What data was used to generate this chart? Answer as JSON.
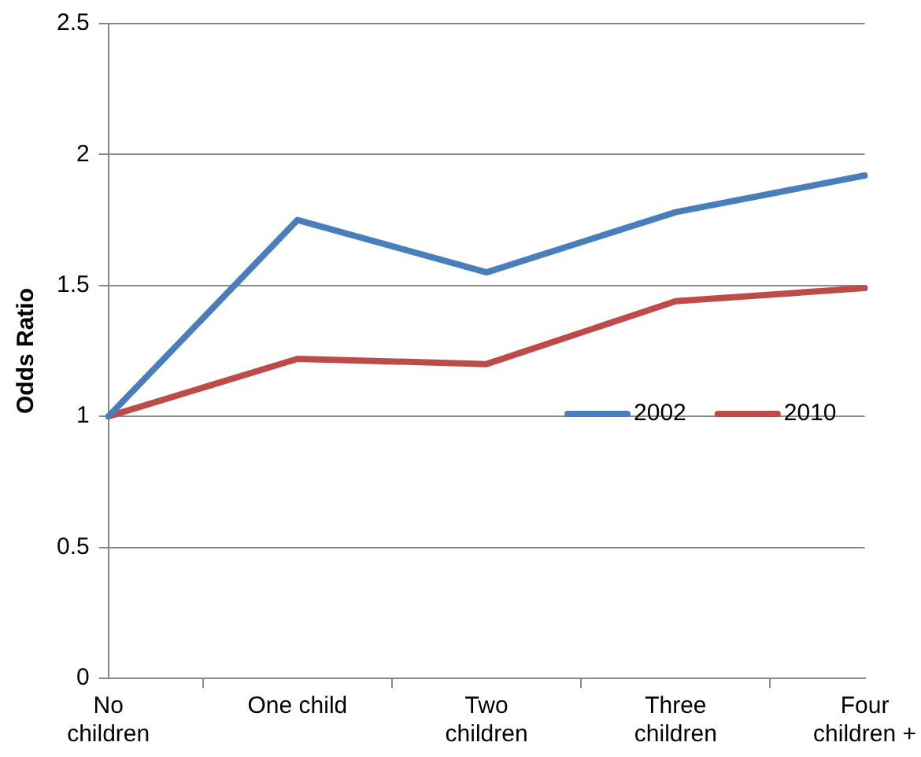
{
  "chart_data": {
    "type": "line",
    "ylabel": "Odds Ratio",
    "categories": [
      "No children",
      "One child",
      "Two children",
      "Three children",
      "Four children +"
    ],
    "series": [
      {
        "name": "2002",
        "color": "#4a7ebb",
        "values": [
          1,
          1.75,
          1.55,
          1.78,
          1.92
        ]
      },
      {
        "name": "2010",
        "color": "#be4b48",
        "values": [
          1,
          1.22,
          1.2,
          1.44,
          1.49
        ]
      }
    ],
    "ylim": [
      0,
      2.5
    ],
    "yticks": [
      0,
      0.5,
      1,
      1.5,
      2,
      2.5
    ],
    "grid": "y",
    "legend": "right",
    "marker": "none",
    "line_style": "solid"
  }
}
